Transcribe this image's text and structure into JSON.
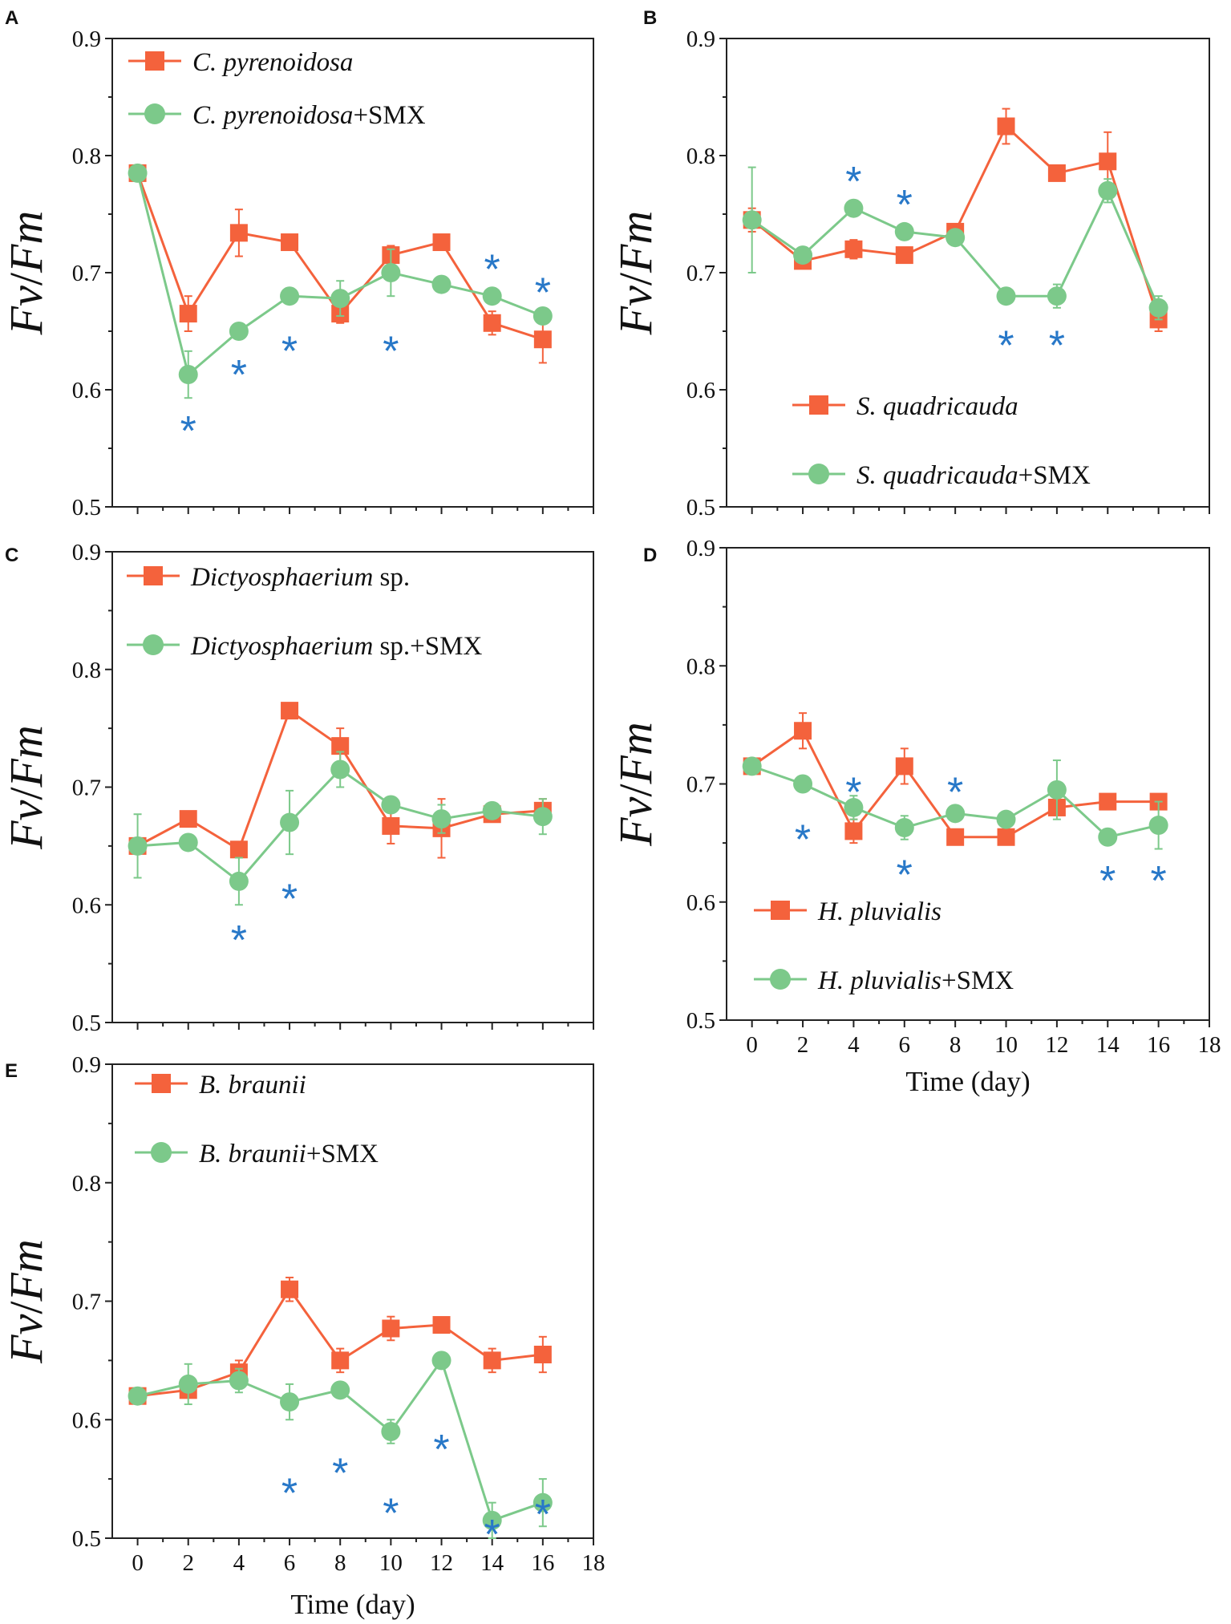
{
  "figure": {
    "colors": {
      "control": "#f4623c",
      "smx": "#7cc98a",
      "star": "#2878c8",
      "axis": "#222222",
      "text": "#111111"
    },
    "time_label": "Time (day)",
    "star_char": "*"
  },
  "chart_data": [
    {
      "panel": "A",
      "type": "line",
      "ylabel": "Fv/Fm",
      "ylabel_parts": [
        "Fv",
        "/",
        "Fm"
      ],
      "xlabel": "",
      "xlim": [
        -1,
        18
      ],
      "ylim": [
        0.5,
        0.9
      ],
      "yticks": [
        "0.5",
        "0.6",
        "0.7",
        "0.8",
        "0.9"
      ],
      "yticks_values": [
        0.5,
        0.6,
        0.7,
        0.8,
        0.9
      ],
      "xticks": [],
      "x": [
        0,
        2,
        4,
        6,
        8,
        10,
        12,
        14,
        16
      ],
      "legend_position": "top-left",
      "series": [
        {
          "name": "C. pyrenoidosa",
          "italic": "C. pyrenoidosa",
          "suffix": "",
          "values": [
            0.785,
            0.665,
            0.734,
            0.726,
            0.665,
            0.715,
            0.726,
            0.657,
            0.643
          ],
          "errors": [
            0.005,
            0.015,
            0.02,
            0.005,
            0.008,
            0.008,
            0.005,
            0.01,
            0.02
          ]
        },
        {
          "name": "C. pyrenoidosa+SMX",
          "italic": "C. pyrenoidosa",
          "suffix": "+SMX",
          "values": [
            0.785,
            0.613,
            0.65,
            0.68,
            0.678,
            0.7,
            0.69,
            0.68,
            0.663
          ],
          "errors": [
            0.005,
            0.02,
            0.005,
            0.005,
            0.015,
            0.02,
            0.005,
            0.005,
            0.005
          ]
        }
      ],
      "stars": [
        {
          "x": 2,
          "y": 0.572
        },
        {
          "x": 4,
          "y": 0.62
        },
        {
          "x": 6,
          "y": 0.64
        },
        {
          "x": 10,
          "y": 0.64
        },
        {
          "x": 14,
          "y": 0.71
        },
        {
          "x": 16,
          "y": 0.69
        }
      ]
    },
    {
      "panel": "B",
      "type": "line",
      "ylabel": "Fv/Fm",
      "ylabel_parts": [
        "Fv",
        "/",
        "Fm"
      ],
      "xlabel": "",
      "xlim": [
        -1,
        18
      ],
      "ylim": [
        0.5,
        0.9
      ],
      "yticks": [
        "0.5",
        "0.6",
        "0.7",
        "0.8",
        "0.9"
      ],
      "yticks_values": [
        0.5,
        0.6,
        0.7,
        0.8,
        0.9
      ],
      "xticks": [],
      "x": [
        0,
        2,
        4,
        6,
        8,
        10,
        12,
        14,
        16
      ],
      "legend_position": "bottom-left",
      "series": [
        {
          "name": "S. quadricauda",
          "italic": "S. quadricauda",
          "suffix": "",
          "values": [
            0.745,
            0.71,
            0.72,
            0.715,
            0.735,
            0.825,
            0.785,
            0.795,
            0.66
          ],
          "errors": [
            0.01,
            0.005,
            0.008,
            0.005,
            0.005,
            0.015,
            0.005,
            0.025,
            0.01
          ]
        },
        {
          "name": "S. quadricauda+SMX",
          "italic": "S. quadricauda",
          "suffix": "+SMX",
          "values": [
            0.745,
            0.715,
            0.755,
            0.735,
            0.73,
            0.68,
            0.68,
            0.77,
            0.67
          ],
          "errors": [
            0.045,
            0.005,
            0.005,
            0.005,
            0.005,
            0.005,
            0.01,
            0.01,
            0.01
          ]
        }
      ],
      "stars": [
        {
          "x": 4,
          "y": 0.785
        },
        {
          "x": 6,
          "y": 0.765
        },
        {
          "x": 10,
          "y": 0.645
        },
        {
          "x": 12,
          "y": 0.645
        }
      ]
    },
    {
      "panel": "C",
      "type": "line",
      "ylabel": "Fv/Fm",
      "ylabel_parts": [
        "Fv",
        "/",
        "Fm"
      ],
      "xlabel": "",
      "xlim": [
        -1,
        18
      ],
      "ylim": [
        0.5,
        0.9
      ],
      "yticks": [
        "0.5",
        "0.6",
        "0.7",
        "0.8",
        "0.9"
      ],
      "yticks_values": [
        0.5,
        0.6,
        0.7,
        0.8,
        0.9
      ],
      "xticks": [],
      "x": [
        0,
        2,
        4,
        6,
        8,
        10,
        12,
        14,
        16
      ],
      "legend_position": "top-left",
      "series": [
        {
          "name": "Dictyosphaerium sp.",
          "italic": "Dictyosphaerium",
          "suffix": " sp.",
          "values": [
            0.65,
            0.673,
            0.647,
            0.765,
            0.735,
            0.667,
            0.665,
            0.677,
            0.68
          ],
          "errors": [
            0.005,
            0.005,
            0.005,
            0.005,
            0.015,
            0.015,
            0.025,
            0.005,
            0.01
          ]
        },
        {
          "name": "Dictyosphaerium sp.+SMX",
          "italic": "Dictyosphaerium",
          "suffix": " sp.+SMX",
          "values": [
            0.65,
            0.653,
            0.62,
            0.67,
            0.715,
            0.685,
            0.673,
            0.68,
            0.675
          ],
          "errors": [
            0.027,
            0.005,
            0.02,
            0.027,
            0.015,
            0.005,
            0.012,
            0.005,
            0.015
          ]
        }
      ],
      "stars": [
        {
          "x": 4,
          "y": 0.577
        },
        {
          "x": 6,
          "y": 0.612
        }
      ]
    },
    {
      "panel": "D",
      "type": "line",
      "ylabel": "Fv/Fm",
      "ylabel_parts": [
        "Fv",
        "/",
        "Fm"
      ],
      "xlabel": "Time (day)",
      "xlim": [
        -1,
        18
      ],
      "ylim": [
        0.5,
        0.9
      ],
      "yticks": [
        "0.5",
        "0.6",
        "0.7",
        "0.8",
        "0.9"
      ],
      "yticks_values": [
        0.5,
        0.6,
        0.7,
        0.8,
        0.9
      ],
      "xticks": [
        "0",
        "2",
        "4",
        "6",
        "8",
        "10",
        "12",
        "14",
        "16",
        "18"
      ],
      "xticks_values": [
        0,
        2,
        4,
        6,
        8,
        10,
        12,
        14,
        16,
        18
      ],
      "x": [
        0,
        2,
        4,
        6,
        8,
        10,
        12,
        14,
        16
      ],
      "legend_position": "bottom-left",
      "series": [
        {
          "name": "H. pluvialis",
          "italic": "H. pluvialis",
          "suffix": "",
          "values": [
            0.715,
            0.745,
            0.66,
            0.715,
            0.655,
            0.655,
            0.68,
            0.685,
            0.685
          ],
          "errors": [
            0.005,
            0.015,
            0.01,
            0.015,
            0.005,
            0.005,
            0.005,
            0.005,
            0.005
          ]
        },
        {
          "name": "H. pluvialis+SMX",
          "italic": "H. pluvialis",
          "suffix": "+SMX",
          "values": [
            0.715,
            0.7,
            0.68,
            0.663,
            0.675,
            0.67,
            0.695,
            0.655,
            0.665
          ],
          "errors": [
            0.005,
            0.005,
            0.01,
            0.01,
            0.005,
            0.005,
            0.025,
            0.005,
            0.02
          ]
        }
      ],
      "stars": [
        {
          "x": 2,
          "y": 0.66
        },
        {
          "x": 4,
          "y": 0.7
        },
        {
          "x": 6,
          "y": 0.63
        },
        {
          "x": 8,
          "y": 0.7
        },
        {
          "x": 14,
          "y": 0.625
        },
        {
          "x": 16,
          "y": 0.625
        }
      ]
    },
    {
      "panel": "E",
      "type": "line",
      "ylabel": "Fv/Fm",
      "ylabel_parts": [
        "Fv",
        "/",
        "Fm"
      ],
      "xlabel": "Time (day)",
      "xlim": [
        -1,
        18
      ],
      "ylim": [
        0.5,
        0.9
      ],
      "yticks": [
        "0.5",
        "0.6",
        "0.7",
        "0.8",
        "0.9"
      ],
      "yticks_values": [
        0.5,
        0.6,
        0.7,
        0.8,
        0.9
      ],
      "xticks": [
        "0",
        "2",
        "4",
        "6",
        "8",
        "10",
        "12",
        "14",
        "16",
        "18"
      ],
      "xticks_values": [
        0,
        2,
        4,
        6,
        8,
        10,
        12,
        14,
        16,
        18
      ],
      "x": [
        0,
        2,
        4,
        6,
        8,
        10,
        12,
        14,
        16
      ],
      "legend_position": "top-left",
      "series": [
        {
          "name": "B. braunii",
          "italic": "B. braunii",
          "suffix": "",
          "values": [
            0.62,
            0.625,
            0.64,
            0.71,
            0.65,
            0.677,
            0.68,
            0.65,
            0.655
          ],
          "errors": [
            0.005,
            0.005,
            0.01,
            0.01,
            0.01,
            0.01,
            0.005,
            0.01,
            0.015
          ]
        },
        {
          "name": "B. braunii+SMX",
          "italic": "B. braunii",
          "suffix": "+SMX",
          "values": [
            0.62,
            0.63,
            0.633,
            0.615,
            0.625,
            0.59,
            0.65,
            0.515,
            0.53
          ],
          "errors": [
            0.005,
            0.017,
            0.01,
            0.015,
            0.005,
            0.01,
            0.005,
            0.015,
            0.02
          ]
        }
      ],
      "stars": [
        {
          "x": 6,
          "y": 0.545
        },
        {
          "x": 8,
          "y": 0.562
        },
        {
          "x": 10,
          "y": 0.528
        },
        {
          "x": 12,
          "y": 0.582
        },
        {
          "x": 14,
          "y": 0.51
        },
        {
          "x": 16,
          "y": 0.527
        }
      ]
    }
  ]
}
